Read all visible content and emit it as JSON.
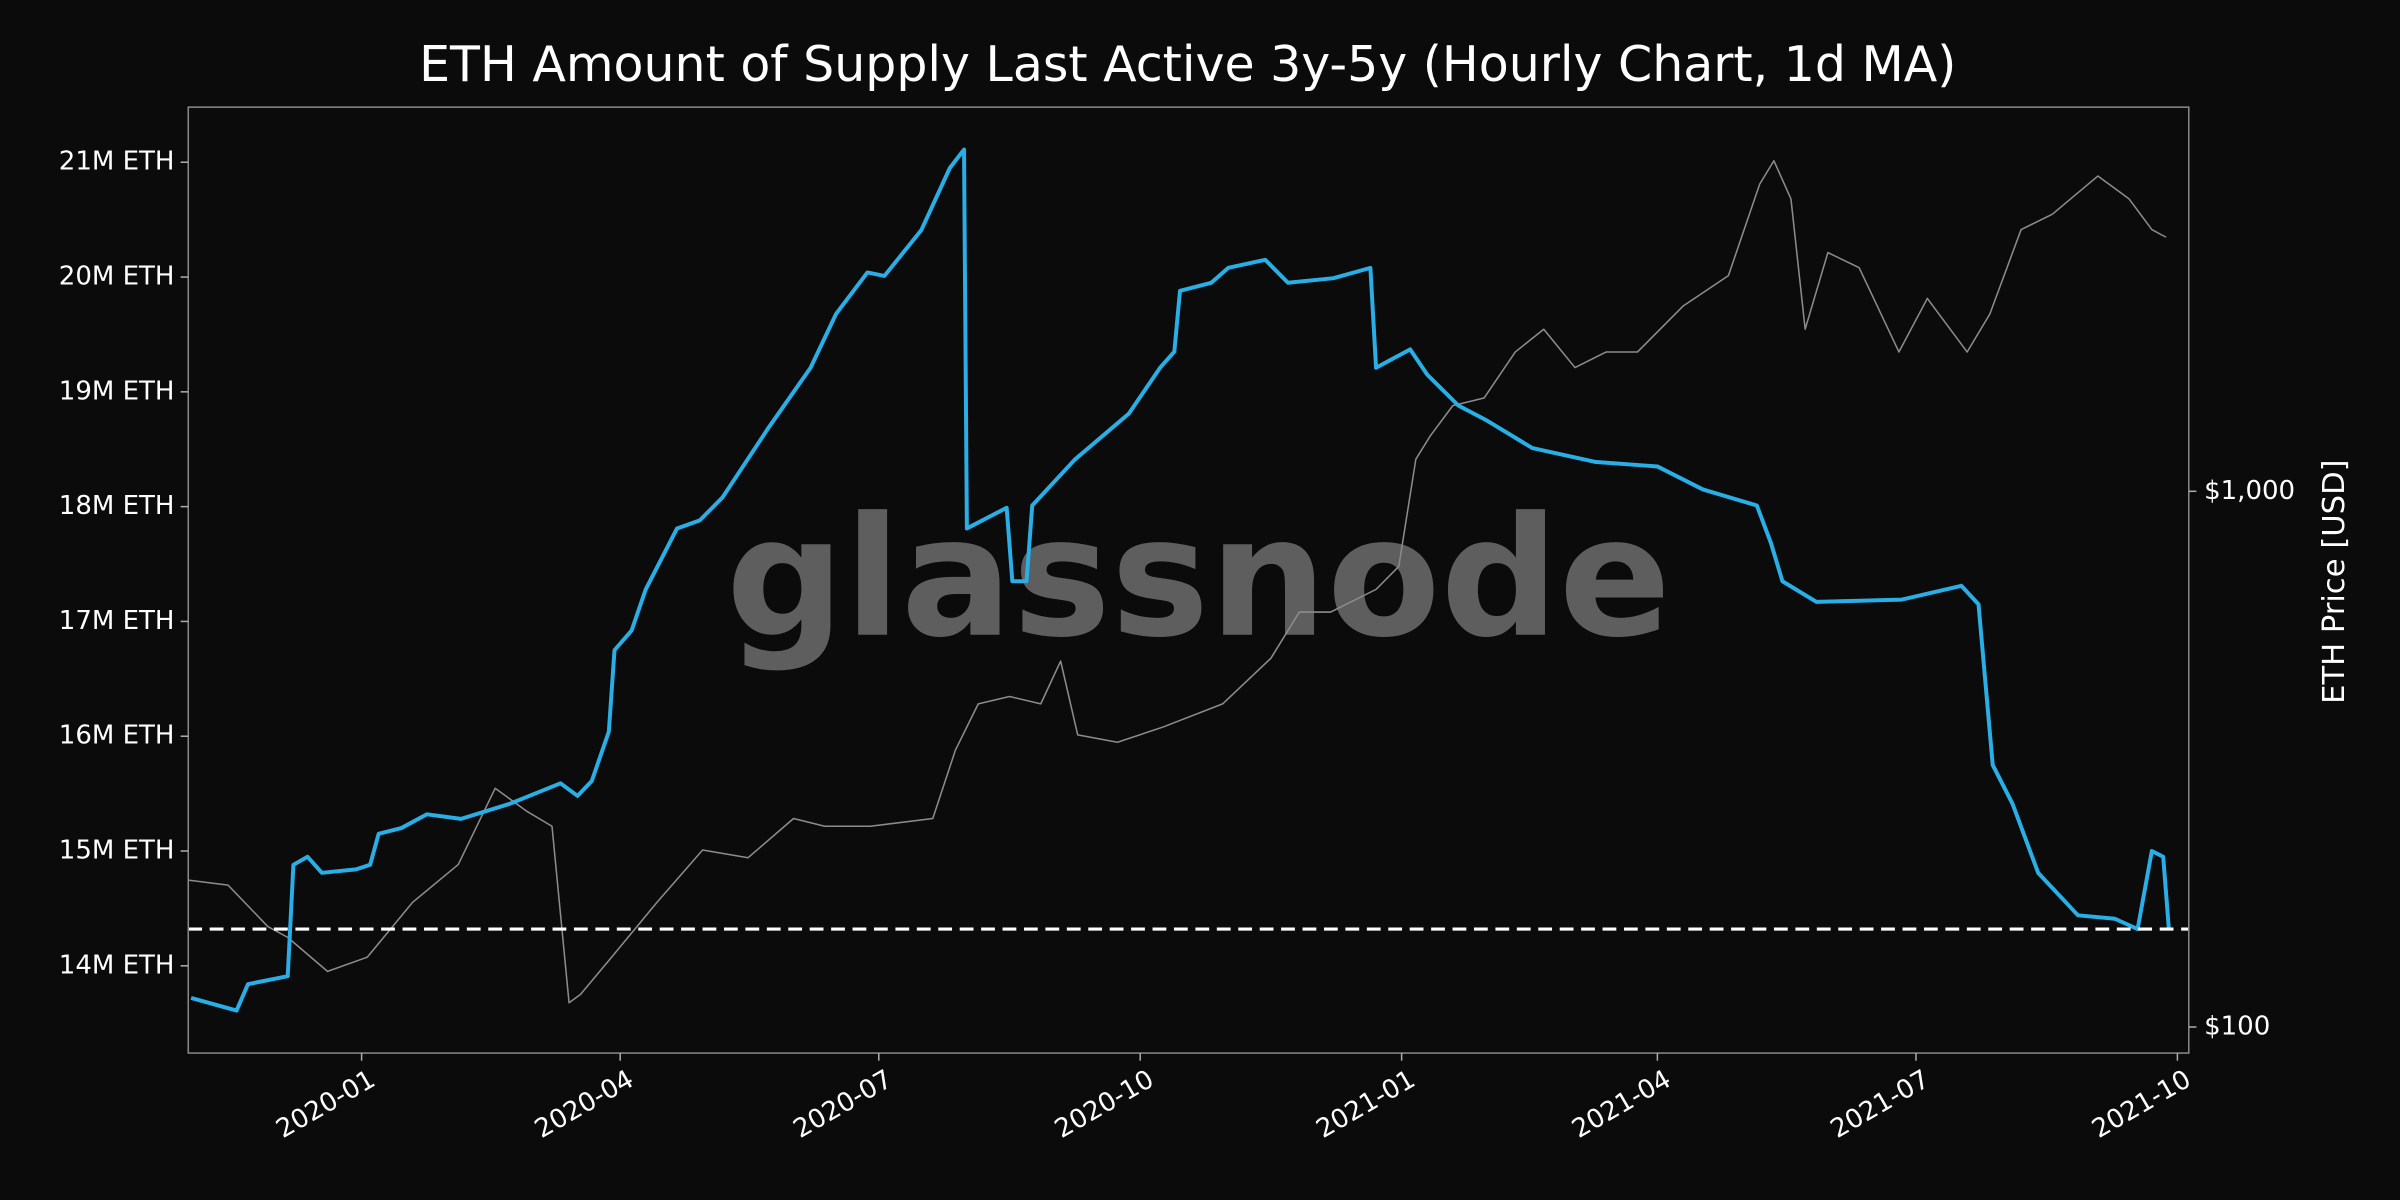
{
  "chart_data": {
    "type": "line",
    "title": "ETH Amount of Supply Last Active 3y-5y (Hourly Chart, 1d MA)",
    "watermark": "glassnode",
    "y2label": "ETH Price [USD]",
    "xlim": [
      "2019-11-01",
      "2021-10-05"
    ],
    "xticks": [
      {
        "value": "2020-01-01",
        "label": "2020-01"
      },
      {
        "value": "2020-04-01",
        "label": "2020-04"
      },
      {
        "value": "2020-07-01",
        "label": "2020-07"
      },
      {
        "value": "2020-10-01",
        "label": "2020-10"
      },
      {
        "value": "2021-01-01",
        "label": "2021-01"
      },
      {
        "value": "2021-04-01",
        "label": "2021-04"
      },
      {
        "value": "2021-07-01",
        "label": "2021-07"
      },
      {
        "value": "2021-10-01",
        "label": "2021-10"
      }
    ],
    "ylim": [
      13240000,
      21480000
    ],
    "yticks": [
      {
        "value": 14000000,
        "label": "14M ETH"
      },
      {
        "value": 15000000,
        "label": "15M ETH"
      },
      {
        "value": 16000000,
        "label": "16M ETH"
      },
      {
        "value": 17000000,
        "label": "17M ETH"
      },
      {
        "value": 18000000,
        "label": "18M ETH"
      },
      {
        "value": 19000000,
        "label": "19M ETH"
      },
      {
        "value": 20000000,
        "label": "20M ETH"
      },
      {
        "value": 21000000,
        "label": "21M ETH"
      }
    ],
    "y2lim": [
      89.4,
      5213
    ],
    "y2scale": "log",
    "y2ticks": [
      {
        "value": 100,
        "label": "$100"
      },
      {
        "value": 1000,
        "label": "$1,000"
      }
    ],
    "hline": 14320000,
    "series": [
      {
        "color": "#8c8c8c",
        "axis": "y2",
        "x": [
          "2019-11-01",
          "2019-11-15",
          "2019-11-29",
          "2019-12-06",
          "2019-12-20",
          "2020-01-03",
          "2020-01-19",
          "2020-02-04",
          "2020-02-17",
          "2020-02-28",
          "2020-03-08",
          "2020-03-14",
          "2020-03-18",
          "2020-03-29",
          "2020-04-14",
          "2020-04-30",
          "2020-05-16",
          "2020-06-01",
          "2020-06-12",
          "2020-06-28",
          "2020-07-20",
          "2020-07-28",
          "2020-08-05",
          "2020-08-16",
          "2020-08-27",
          "2020-09-03",
          "2020-09-09",
          "2020-09-23",
          "2020-10-09",
          "2020-10-30",
          "2020-11-16",
          "2020-11-26",
          "2020-12-07",
          "2020-12-23",
          "2020-12-31",
          "2021-01-06",
          "2021-01-11",
          "2021-01-19",
          "2021-01-30",
          "2021-02-10",
          "2021-02-20",
          "2021-03-03",
          "2021-03-14",
          "2021-03-25",
          "2021-04-10",
          "2021-04-26",
          "2021-05-07",
          "2021-05-12",
          "2021-05-18",
          "2021-05-23",
          "2021-05-31",
          "2021-06-11",
          "2021-06-25",
          "2021-07-05",
          "2021-07-19",
          "2021-07-27",
          "2021-08-07",
          "2021-08-18",
          "2021-09-03",
          "2021-09-14",
          "2021-09-22",
          "2021-09-27"
        ],
        "values": [
          188,
          184,
          154,
          147,
          127,
          135,
          171,
          201,
          279,
          253,
          237,
          111,
          115,
          135,
          171,
          214,
          207,
          245,
          237,
          237,
          245,
          329,
          401,
          414,
          401,
          482,
          351,
          340,
          363,
          401,
          488,
          595,
          595,
          656,
          724,
          1148,
          1267,
          1445,
          1493,
          1820,
          2007,
          1702,
          1820,
          1820,
          2216,
          2527,
          3745,
          4140,
          3514,
          2007,
          2790,
          2614,
          1820,
          2291,
          1820,
          2143,
          3080,
          3290,
          3877,
          3514,
          3080,
          2980
        ]
      },
      {
        "color": "#29aee6",
        "x": [
          "2019-11-02",
          "2019-11-18",
          "2019-11-22",
          "2019-12-06",
          "2019-12-08",
          "2019-12-13",
          "2019-12-18",
          "2019-12-30",
          "2020-01-04",
          "2020-01-07",
          "2020-01-15",
          "2020-01-24",
          "2020-02-05",
          "2020-02-22",
          "2020-03-11",
          "2020-03-17",
          "2020-03-22",
          "2020-03-28",
          "2020-03-30",
          "2020-04-05",
          "2020-04-10",
          "2020-04-21",
          "2020-04-29",
          "2020-05-07",
          "2020-05-23",
          "2020-06-07",
          "2020-06-16",
          "2020-06-27",
          "2020-07-03",
          "2020-07-16",
          "2020-07-26",
          "2020-07-31",
          "2020-08-01",
          "2020-08-15",
          "2020-08-17",
          "2020-08-22",
          "2020-08-24",
          "2020-09-08",
          "2020-09-27",
          "2020-10-08",
          "2020-10-13",
          "2020-10-15",
          "2020-10-26",
          "2020-11-01",
          "2020-11-14",
          "2020-11-22",
          "2020-12-08",
          "2020-12-21",
          "2020-12-23",
          "2021-01-04",
          "2021-01-10",
          "2021-01-21",
          "2021-01-31",
          "2021-02-16",
          "2021-03-10",
          "2021-04-01",
          "2021-04-17",
          "2021-05-06",
          "2021-05-11",
          "2021-05-15",
          "2021-05-27",
          "2021-06-26",
          "2021-07-17",
          "2021-07-23",
          "2021-07-28",
          "2021-08-04",
          "2021-08-13",
          "2021-08-27",
          "2021-09-09",
          "2021-09-17",
          "2021-09-22",
          "2021-09-26",
          "2021-09-28"
        ],
        "values": [
          13720000,
          13610000,
          13840000,
          13910000,
          14880000,
          14950000,
          14810000,
          14840000,
          14880000,
          15150000,
          15200000,
          15320000,
          15280000,
          15410000,
          15590000,
          15480000,
          15610000,
          16040000,
          16750000,
          16920000,
          17280000,
          17810000,
          17880000,
          18080000,
          18680000,
          19210000,
          19680000,
          20040000,
          20010000,
          20410000,
          20950000,
          21110000,
          17810000,
          17990000,
          17350000,
          17350000,
          18010000,
          18410000,
          18810000,
          19210000,
          19350000,
          19880000,
          19950000,
          20080000,
          20150000,
          19950000,
          19990000,
          20080000,
          19210000,
          19370000,
          19150000,
          18880000,
          18750000,
          18510000,
          18390000,
          18350000,
          18150000,
          18010000,
          17680000,
          17350000,
          17170000,
          17190000,
          17310000,
          17150000,
          15750000,
          15410000,
          14810000,
          14440000,
          14410000,
          14320000,
          15000000,
          14950000,
          14320000
        ]
      }
    ]
  }
}
